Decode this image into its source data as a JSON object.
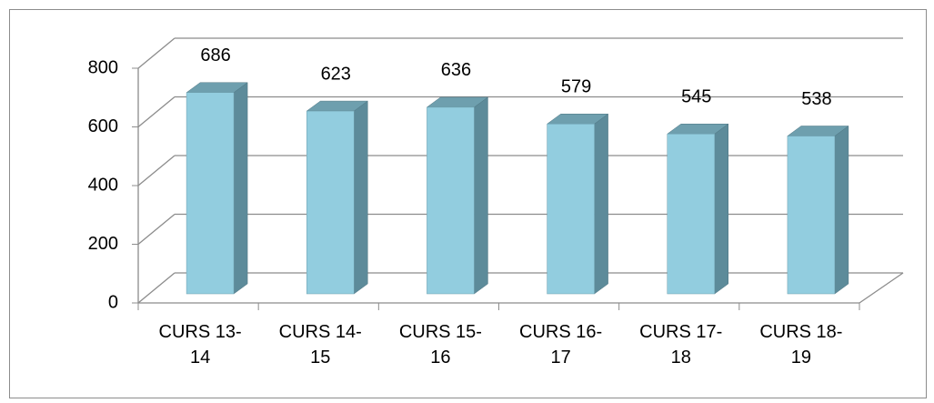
{
  "chart_data": {
    "type": "bar3d",
    "categories": [
      "CURS 13-\n14",
      "CURS 14-\n15",
      "CURS 15-\n16",
      "CURS 16-\n17",
      "CURS 17-\n18",
      "CURS 18-\n19"
    ],
    "values": [
      686,
      623,
      636,
      579,
      545,
      538
    ],
    "color": "#92cddf",
    "ylim": [
      0,
      800
    ],
    "yticks": [
      0,
      200,
      400,
      600,
      800
    ],
    "grid": true
  }
}
